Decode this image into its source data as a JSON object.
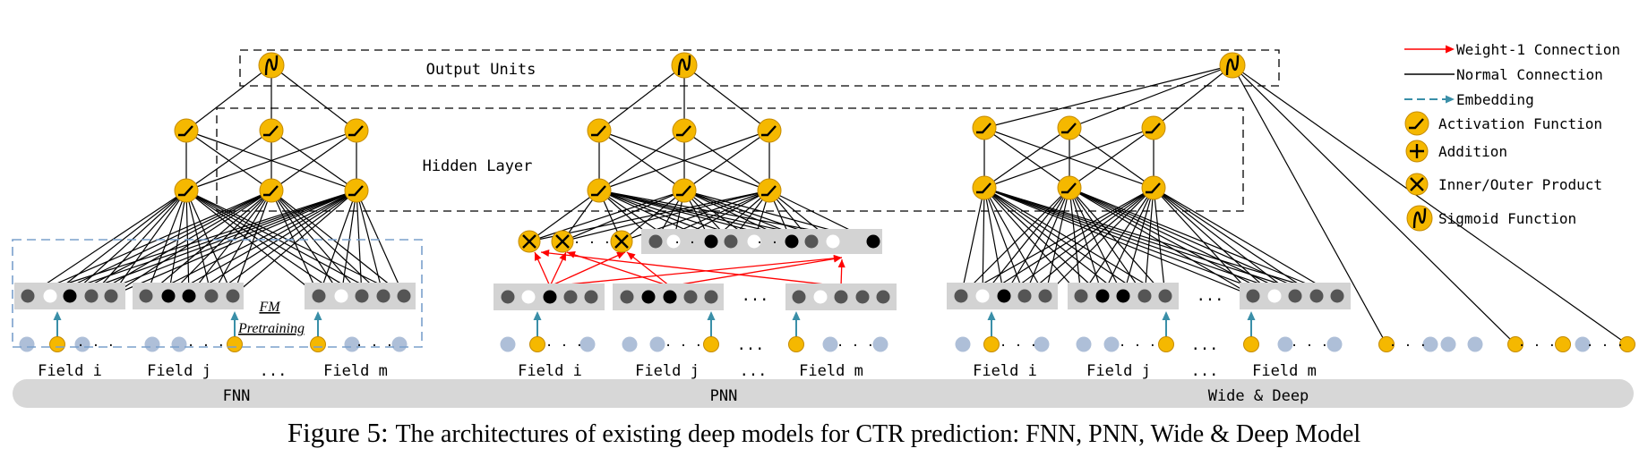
{
  "colors": {
    "act": "#f5b800",
    "act_stroke": "#c48a00",
    "node_light": "#aebfd8",
    "node_black": "#000000",
    "node_dark": "#555555",
    "node_mid": "#8a8a8a",
    "node_white": "#ffffff",
    "field_bg": "#d3d3d3",
    "bar_bg": "#d7d7d7",
    "embed_arrow": "#3a8fa8",
    "weight1": "#ff0000",
    "fm_box": "#7aa0cc"
  },
  "labels": {
    "output_units": "Output Units",
    "hidden_layer": "Hidden Layer",
    "fm": "FM",
    "pretraining": "Pretraining",
    "field_i": "Field i",
    "field_j": "Field j",
    "field_m": "Field m",
    "ellipsis": "...",
    "ellipsis_small": "· · ·"
  },
  "models": [
    {
      "name": "FNN"
    },
    {
      "name": "PNN"
    },
    {
      "name": "Wide & Deep"
    }
  ],
  "legend": [
    {
      "label": "Weight-1 Connection",
      "icon": "red-arrow"
    },
    {
      "label": "Normal Connection",
      "icon": "black-line"
    },
    {
      "label": "Embedding",
      "icon": "dashed-arrow"
    },
    {
      "label": "Activation Function",
      "icon": "activation-icon"
    },
    {
      "label": "Addition",
      "icon": "addition-icon"
    },
    {
      "label": "Inner/Outer Product",
      "icon": "product-icon"
    },
    {
      "label": "Sigmoid Function",
      "icon": "sigmoid-icon"
    }
  ],
  "caption": {
    "prefix": "Figure 5:",
    "text": "The architectures of existing deep models for CTR prediction: FNN, PNN, Wide & Deep Model"
  }
}
